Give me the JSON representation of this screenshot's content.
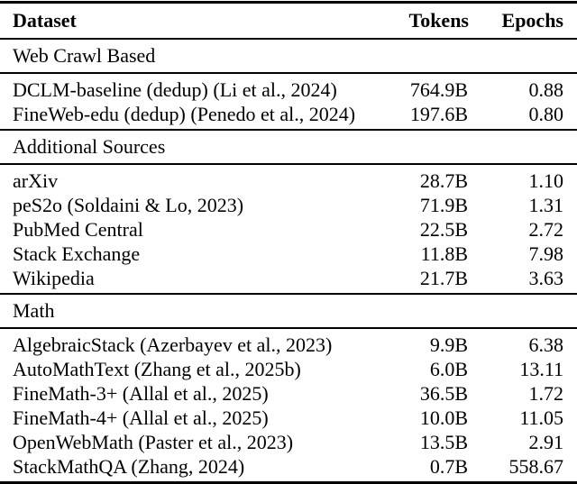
{
  "table": {
    "columns": [
      "Dataset",
      "Tokens",
      "Epochs"
    ],
    "sections": [
      {
        "title": "Web Crawl Based",
        "rows": [
          {
            "dataset": "DCLM-baseline (dedup) (Li et al., 2024)",
            "tokens": "764.9B",
            "epochs": "0.88"
          },
          {
            "dataset": "FineWeb-edu (dedup) (Penedo et al., 2024)",
            "tokens": "197.6B",
            "epochs": "0.80"
          }
        ]
      },
      {
        "title": "Additional Sources",
        "rows": [
          {
            "dataset": "arXiv",
            "tokens": "28.7B",
            "epochs": "1.10"
          },
          {
            "dataset": "peS2o (Soldaini & Lo, 2023)",
            "tokens": "71.9B",
            "epochs": "1.31"
          },
          {
            "dataset": "PubMed Central",
            "tokens": "22.5B",
            "epochs": "2.72"
          },
          {
            "dataset": "Stack Exchange",
            "tokens": "11.8B",
            "epochs": "7.98"
          },
          {
            "dataset": "Wikipedia",
            "tokens": "21.7B",
            "epochs": "3.63"
          }
        ]
      },
      {
        "title": "Math",
        "rows": [
          {
            "dataset": "AlgebraicStack (Azerbayev et al., 2023)",
            "tokens": "9.9B",
            "epochs": "6.38"
          },
          {
            "dataset": "AutoMathText (Zhang et al., 2025b)",
            "tokens": "6.0B",
            "epochs": "13.11"
          },
          {
            "dataset": "FineMath-3+ (Allal et al., 2025)",
            "tokens": "36.5B",
            "epochs": "1.72"
          },
          {
            "dataset": "FineMath-4+ (Allal et al., 2025)",
            "tokens": "10.0B",
            "epochs": "11.05"
          },
          {
            "dataset": "OpenWebMath (Paster et al., 2023)",
            "tokens": "13.5B",
            "epochs": "2.91"
          },
          {
            "dataset": "StackMathQA (Zhang, 2024)",
            "tokens": "0.7B",
            "epochs": "558.67"
          }
        ]
      }
    ],
    "colors": {
      "rule": "#000000",
      "text": "#000000",
      "background": "#ffffff"
    }
  }
}
